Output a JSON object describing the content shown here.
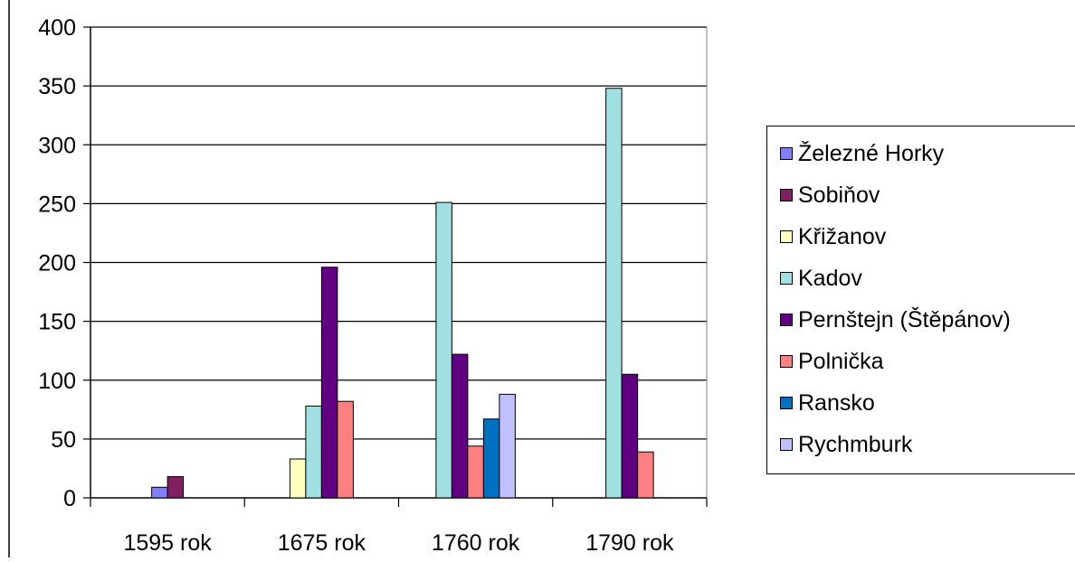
{
  "chart_data": {
    "type": "bar",
    "title": "",
    "xlabel": "",
    "ylabel": "",
    "categories": [
      "1595 rok",
      "1675 rok",
      "1760 rok",
      "1790 rok"
    ],
    "ylim": [
      0,
      400
    ],
    "yticks": [
      0,
      50,
      100,
      150,
      200,
      250,
      300,
      350,
      400
    ],
    "grid": true,
    "legend_position": "right",
    "series": [
      {
        "name": "Železné Horky",
        "color": "#8080ff",
        "values": [
          9,
          null,
          null,
          null
        ]
      },
      {
        "name": "Sobiňov",
        "color": "#802060",
        "values": [
          18,
          null,
          null,
          null
        ]
      },
      {
        "name": "Křižanov",
        "color": "#ffffc0",
        "values": [
          null,
          33,
          null,
          null
        ]
      },
      {
        "name": "Kadov",
        "color": "#a0e0e0",
        "values": [
          null,
          78,
          251,
          348
        ]
      },
      {
        "name": "Pernštejn (Štěpánov)",
        "color": "#600080",
        "values": [
          null,
          196,
          122,
          105
        ]
      },
      {
        "name": "Polnička",
        "color": "#ff8080",
        "values": [
          null,
          82,
          44,
          39
        ]
      },
      {
        "name": "Ransko",
        "color": "#0070c0",
        "values": [
          null,
          null,
          67,
          null
        ]
      },
      {
        "name": "Rychmburk",
        "color": "#c0c0ff",
        "values": [
          null,
          null,
          88,
          null
        ]
      }
    ]
  }
}
